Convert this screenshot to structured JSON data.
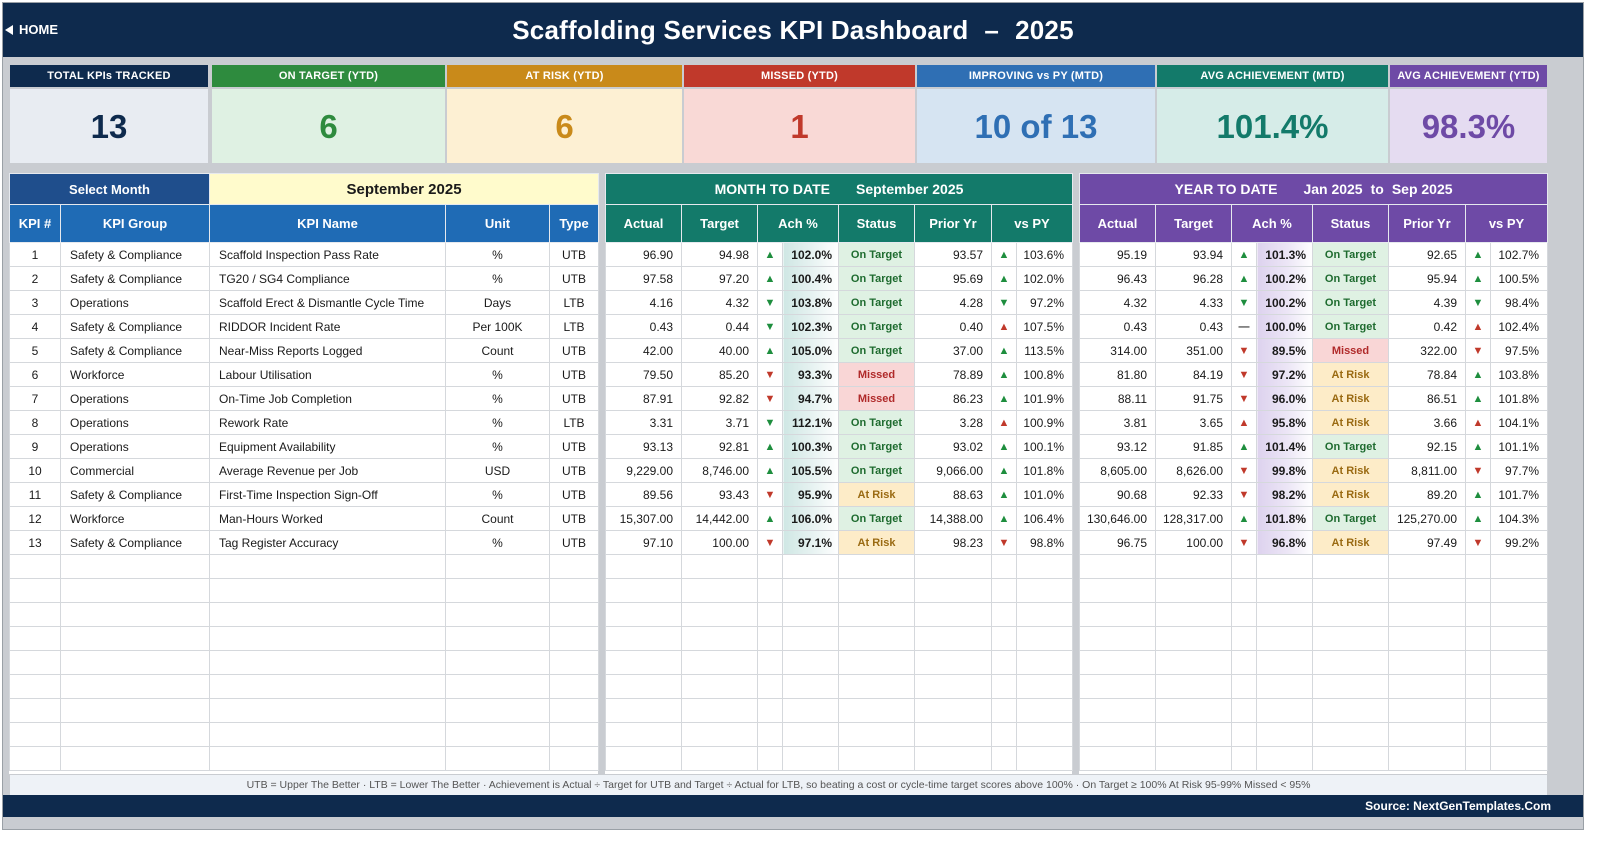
{
  "header": {
    "home_label": "HOME",
    "title": "Scaffolding Services KPI Dashboard",
    "title_sep": "–",
    "title_year": "2025"
  },
  "cards": [
    {
      "label": "TOTAL KPIs TRACKED",
      "value": "13",
      "head_color": "#0e2a4d",
      "body_bg": "#e8ecf2",
      "value_color": "#0e2a4d"
    },
    {
      "label": "ON TARGET (YTD)",
      "value": "6",
      "head_color": "#2e8b3e",
      "body_bg": "#dff1e3",
      "value_color": "#2e8b3e"
    },
    {
      "label": "AT RISK (YTD)",
      "value": "6",
      "head_color": "#c98a1a",
      "body_bg": "#fdf0d3",
      "value_color": "#c98a1a"
    },
    {
      "label": "MISSED (YTD)",
      "value": "1",
      "head_color": "#c0392b",
      "body_bg": "#f9d9d6",
      "value_color": "#c0392b"
    },
    {
      "label": "IMPROVING vs PY (MTD)",
      "value": "10 of 13",
      "head_color": "#2f6fb4",
      "body_bg": "#d6e4f2",
      "value_color": "#2f6fb4"
    },
    {
      "label": "AVG ACHIEVEMENT (MTD)",
      "value": "101.4%",
      "head_color": "#137a6a",
      "body_bg": "#d6ece8",
      "value_color": "#137a6a"
    },
    {
      "label": "AVG ACHIEVEMENT (YTD)",
      "value": "98.3%",
      "head_color": "#6e4aa6",
      "body_bg": "#e5dcf1",
      "value_color": "#6e4aa6"
    }
  ],
  "select": {
    "label": "Select Month",
    "value": "September 2025"
  },
  "mtd": {
    "label": "MONTH TO DATE",
    "period": "September 2025",
    "color": "#137a6a"
  },
  "ytd": {
    "label": "YEAR TO DATE",
    "from": "Jan 2025",
    "to_word": "to",
    "to": "Sep 2025",
    "color": "#6e4aa6"
  },
  "columns": {
    "left": [
      "KPI #",
      "KPI Group",
      "KPI Name",
      "Unit",
      "Type"
    ],
    "mtd": [
      "Actual",
      "Target",
      "Ach %",
      "Status",
      "Prior Yr",
      "vs PY"
    ],
    "ytd": [
      "Actual",
      "Target",
      "Ach %",
      "Status",
      "Prior Yr",
      "vs PY"
    ],
    "header_color": "#1f6bb5"
  },
  "rows": [
    {
      "num": "1",
      "group": "Safety & Compliance",
      "name": "Scaffold Inspection Pass Rate",
      "unit": "%",
      "type": "UTB",
      "m_actual": "96.90",
      "m_target": "94.98",
      "m_arrow": "up",
      "m_ach": "102.0%",
      "m_status": "On Target",
      "m_prior": "93.57",
      "m_pyarrow": "up",
      "m_vspy": "103.6%",
      "y_actual": "95.19",
      "y_target": "93.94",
      "y_arrow": "up",
      "y_ach": "101.3%",
      "y_status": "On Target",
      "y_prior": "92.65",
      "y_pyarrow": "up",
      "y_vspy": "102.7%"
    },
    {
      "num": "2",
      "group": "Safety & Compliance",
      "name": "TG20 / SG4 Compliance",
      "unit": "%",
      "type": "UTB",
      "m_actual": "97.58",
      "m_target": "97.20",
      "m_arrow": "up",
      "m_ach": "100.4%",
      "m_status": "On Target",
      "m_prior": "95.69",
      "m_pyarrow": "up",
      "m_vspy": "102.0%",
      "y_actual": "96.43",
      "y_target": "96.28",
      "y_arrow": "up",
      "y_ach": "100.2%",
      "y_status": "On Target",
      "y_prior": "95.94",
      "y_pyarrow": "up",
      "y_vspy": "100.5%"
    },
    {
      "num": "3",
      "group": "Operations",
      "name": "Scaffold Erect & Dismantle Cycle Time",
      "unit": "Days",
      "type": "LTB",
      "m_actual": "4.16",
      "m_target": "4.32",
      "m_arrow": "down-good",
      "m_ach": "103.8%",
      "m_status": "On Target",
      "m_prior": "4.28",
      "m_pyarrow": "down-good",
      "m_vspy": "97.2%",
      "y_actual": "4.32",
      "y_target": "4.33",
      "y_arrow": "down-good",
      "y_ach": "100.2%",
      "y_status": "On Target",
      "y_prior": "4.39",
      "y_pyarrow": "down-good",
      "y_vspy": "98.4%"
    },
    {
      "num": "4",
      "group": "Safety & Compliance",
      "name": "RIDDOR Incident Rate",
      "unit": "Per 100K",
      "type": "LTB",
      "m_actual": "0.43",
      "m_target": "0.44",
      "m_arrow": "down-good",
      "m_ach": "102.3%",
      "m_status": "On Target",
      "m_prior": "0.40",
      "m_pyarrow": "up-bad",
      "m_vspy": "107.5%",
      "y_actual": "0.43",
      "y_target": "0.43",
      "y_arrow": "flat",
      "y_ach": "100.0%",
      "y_status": "On Target",
      "y_prior": "0.42",
      "y_pyarrow": "up-bad",
      "y_vspy": "102.4%"
    },
    {
      "num": "5",
      "group": "Safety & Compliance",
      "name": "Near-Miss Reports Logged",
      "unit": "Count",
      "type": "UTB",
      "m_actual": "42.00",
      "m_target": "40.00",
      "m_arrow": "up",
      "m_ach": "105.0%",
      "m_status": "On Target",
      "m_prior": "37.00",
      "m_pyarrow": "up",
      "m_vspy": "113.5%",
      "y_actual": "314.00",
      "y_target": "351.00",
      "y_arrow": "down",
      "y_ach": "89.5%",
      "y_status": "Missed",
      "y_prior": "322.00",
      "y_pyarrow": "down",
      "y_vspy": "97.5%"
    },
    {
      "num": "6",
      "group": "Workforce",
      "name": "Labour Utilisation",
      "unit": "%",
      "type": "UTB",
      "m_actual": "79.50",
      "m_target": "85.20",
      "m_arrow": "down",
      "m_ach": "93.3%",
      "m_status": "Missed",
      "m_prior": "78.89",
      "m_pyarrow": "up",
      "m_vspy": "100.8%",
      "y_actual": "81.80",
      "y_target": "84.19",
      "y_arrow": "down",
      "y_ach": "97.2%",
      "y_status": "At Risk",
      "y_prior": "78.84",
      "y_pyarrow": "up",
      "y_vspy": "103.8%"
    },
    {
      "num": "7",
      "group": "Operations",
      "name": "On-Time Job Completion",
      "unit": "%",
      "type": "UTB",
      "m_actual": "87.91",
      "m_target": "92.82",
      "m_arrow": "down",
      "m_ach": "94.7%",
      "m_status": "Missed",
      "m_prior": "86.23",
      "m_pyarrow": "up",
      "m_vspy": "101.9%",
      "y_actual": "88.11",
      "y_target": "91.75",
      "y_arrow": "down",
      "y_ach": "96.0%",
      "y_status": "At Risk",
      "y_prior": "86.51",
      "y_pyarrow": "up",
      "y_vspy": "101.8%"
    },
    {
      "num": "8",
      "group": "Operations",
      "name": "Rework Rate",
      "unit": "%",
      "type": "LTB",
      "m_actual": "3.31",
      "m_target": "3.71",
      "m_arrow": "down-good",
      "m_ach": "112.1%",
      "m_status": "On Target",
      "m_prior": "3.28",
      "m_pyarrow": "up-bad",
      "m_vspy": "100.9%",
      "y_actual": "3.81",
      "y_target": "3.65",
      "y_arrow": "up-bad",
      "y_ach": "95.8%",
      "y_status": "At Risk",
      "y_prior": "3.66",
      "y_pyarrow": "up-bad",
      "y_vspy": "104.1%"
    },
    {
      "num": "9",
      "group": "Operations",
      "name": "Equipment Availability",
      "unit": "%",
      "type": "UTB",
      "m_actual": "93.13",
      "m_target": "92.81",
      "m_arrow": "up",
      "m_ach": "100.3%",
      "m_status": "On Target",
      "m_prior": "93.02",
      "m_pyarrow": "up",
      "m_vspy": "100.1%",
      "y_actual": "93.12",
      "y_target": "91.85",
      "y_arrow": "up",
      "y_ach": "101.4%",
      "y_status": "On Target",
      "y_prior": "92.15",
      "y_pyarrow": "up",
      "y_vspy": "101.1%"
    },
    {
      "num": "10",
      "group": "Commercial",
      "name": "Average Revenue per Job",
      "unit": "USD",
      "type": "UTB",
      "m_actual": "9,229.00",
      "m_target": "8,746.00",
      "m_arrow": "up",
      "m_ach": "105.5%",
      "m_status": "On Target",
      "m_prior": "9,066.00",
      "m_pyarrow": "up",
      "m_vspy": "101.8%",
      "y_actual": "8,605.00",
      "y_target": "8,626.00",
      "y_arrow": "down",
      "y_ach": "99.8%",
      "y_status": "At Risk",
      "y_prior": "8,811.00",
      "y_pyarrow": "down",
      "y_vspy": "97.7%"
    },
    {
      "num": "11",
      "group": "Safety & Compliance",
      "name": "First-Time Inspection Sign-Off",
      "unit": "%",
      "type": "UTB",
      "m_actual": "89.56",
      "m_target": "93.43",
      "m_arrow": "down",
      "m_ach": "95.9%",
      "m_status": "At Risk",
      "m_prior": "88.63",
      "m_pyarrow": "up",
      "m_vspy": "101.0%",
      "y_actual": "90.68",
      "y_target": "92.33",
      "y_arrow": "down",
      "y_ach": "98.2%",
      "y_status": "At Risk",
      "y_prior": "89.20",
      "y_pyarrow": "up",
      "y_vspy": "101.7%"
    },
    {
      "num": "12",
      "group": "Workforce",
      "name": "Man-Hours Worked",
      "unit": "Count",
      "type": "UTB",
      "m_actual": "15,307.00",
      "m_target": "14,442.00",
      "m_arrow": "up",
      "m_ach": "106.0%",
      "m_status": "On Target",
      "m_prior": "14,388.00",
      "m_pyarrow": "up",
      "m_vspy": "106.4%",
      "y_actual": "130,646.00",
      "y_target": "128,317.00",
      "y_arrow": "up",
      "y_ach": "101.8%",
      "y_status": "On Target",
      "y_prior": "125,270.00",
      "y_pyarrow": "up",
      "y_vspy": "104.3%"
    },
    {
      "num": "13",
      "group": "Safety & Compliance",
      "name": "Tag Register Accuracy",
      "unit": "%",
      "type": "UTB",
      "m_actual": "97.10",
      "m_target": "100.00",
      "m_arrow": "down",
      "m_ach": "97.1%",
      "m_status": "At Risk",
      "m_prior": "98.23",
      "m_pyarrow": "down",
      "m_vspy": "98.8%",
      "y_actual": "96.75",
      "y_target": "100.00",
      "y_arrow": "down",
      "y_ach": "96.8%",
      "y_status": "At Risk",
      "y_prior": "97.49",
      "y_pyarrow": "down",
      "y_vspy": "99.2%"
    }
  ],
  "empty_rows": 9,
  "footer": {
    "note": "UTB = Upper The Better   ·   LTB = Lower The Better   ·   Achievement is Actual ÷ Target for UTB and Target ÷ Actual for LTB, so beating a cost or cycle-time target scores above 100%   ·   On Target ≥ 100%    At Risk 95-99%    Missed < 95%",
    "source": "Source: NextGenTemplates.Com"
  }
}
